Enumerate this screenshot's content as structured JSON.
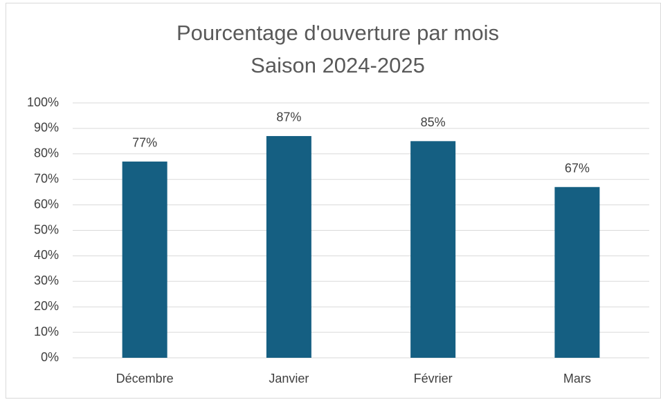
{
  "chart_data": {
    "type": "bar",
    "title": "Pourcentage d'ouverture par mois",
    "subtitle": "Saison 2024-2025",
    "categories": [
      "Décembre",
      "Janvier",
      "Février",
      "Mars"
    ],
    "values": [
      77,
      87,
      85,
      67
    ],
    "value_labels": [
      "77%",
      "87%",
      "85%",
      "67%"
    ],
    "color": "#155f82",
    "ylim": [
      0,
      100
    ],
    "yticks": [
      {
        "value": 0,
        "label": "0%"
      },
      {
        "value": 10,
        "label": "10%"
      },
      {
        "value": 20,
        "label": "20%"
      },
      {
        "value": 30,
        "label": "30%"
      },
      {
        "value": 40,
        "label": "40%"
      },
      {
        "value": 50,
        "label": "50%"
      },
      {
        "value": 60,
        "label": "60%"
      },
      {
        "value": 70,
        "label": "70%"
      },
      {
        "value": 80,
        "label": "80%"
      },
      {
        "value": 90,
        "label": "90%"
      },
      {
        "value": 100,
        "label": "100%"
      }
    ],
    "grid": true
  }
}
